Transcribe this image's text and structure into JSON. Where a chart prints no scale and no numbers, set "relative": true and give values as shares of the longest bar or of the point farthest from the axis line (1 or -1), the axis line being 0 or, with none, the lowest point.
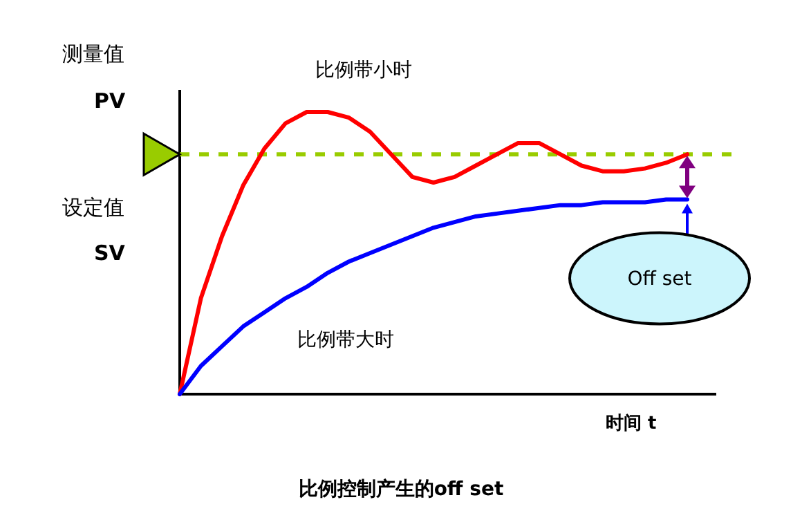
{
  "chart_data": {
    "type": "line",
    "relative": true,
    "title": "比例控制产生的off set",
    "xlabel": "时间 t",
    "ylabel": "测量值",
    "categories": [
      null,
      null,
      null,
      null,
      null,
      null,
      null,
      null,
      null,
      null,
      null,
      null,
      null,
      null,
      null,
      null,
      null,
      null,
      null,
      null,
      null,
      null,
      null,
      null,
      null
    ],
    "series": [
      {
        "name": "比例带小时",
        "color": "#ff0000",
        "values": [
          0,
          0.34,
          0.56,
          0.74,
          0.87,
          0.96,
          1,
          1,
          0.98,
          0.93,
          0.85,
          0.77,
          0.75,
          0.77,
          0.81,
          0.85,
          0.89,
          0.89,
          0.85,
          0.81,
          0.79,
          0.79,
          0.8,
          0.82,
          0.85
        ]
      },
      {
        "name": "比例带大时",
        "color": "#0000ff",
        "values": [
          0,
          0.1,
          0.17,
          0.24,
          0.29,
          0.34,
          0.38,
          0.43,
          0.47,
          0.5,
          0.53,
          0.56,
          0.59,
          0.61,
          0.63,
          0.64,
          0.65,
          0.66,
          0.67,
          0.67,
          0.68,
          0.68,
          0.68,
          0.69,
          0.69
        ]
      }
    ],
    "ref_lines": [
      {
        "axis": "y",
        "value": 0.85,
        "color": "#99cc00",
        "line_style": "dashed"
      }
    ],
    "annotations": [
      "PV",
      "设定值",
      "SV",
      "Off set"
    ]
  }
}
